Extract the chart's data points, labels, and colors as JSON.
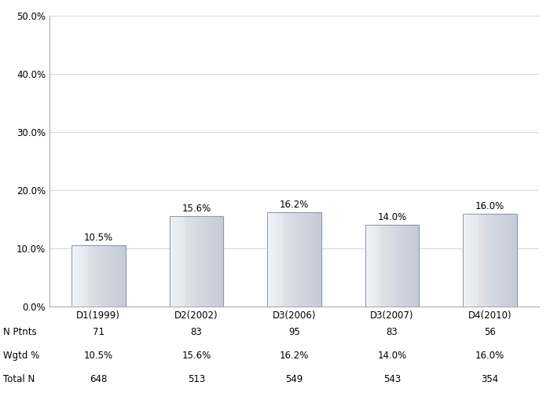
{
  "categories": [
    "D1(1999)",
    "D2(2002)",
    "D3(2006)",
    "D3(2007)",
    "D4(2010)"
  ],
  "values": [
    10.5,
    15.6,
    16.2,
    14.0,
    16.0
  ],
  "bar_labels": [
    "10.5%",
    "15.6%",
    "16.2%",
    "14.0%",
    "16.0%"
  ],
  "ylim": [
    0,
    50
  ],
  "yticks": [
    0,
    10,
    20,
    30,
    40,
    50
  ],
  "ytick_labels": [
    "0.0%",
    "10.0%",
    "20.0%",
    "30.0%",
    "40.0%",
    "50.0%"
  ],
  "n_ptnts": [
    71,
    83,
    95,
    83,
    56
  ],
  "wgtd_pct": [
    "10.5%",
    "15.6%",
    "16.2%",
    "14.0%",
    "16.0%"
  ],
  "total_n": [
    648,
    513,
    549,
    543,
    354
  ],
  "row_labels": [
    "N Ptnts",
    "Wgtd %",
    "Total N"
  ],
  "background_color": "#ffffff",
  "grid_color": "#d0d0d0",
  "text_color": "#000000",
  "bar_width": 0.55,
  "label_fontsize": 8.5,
  "tick_fontsize": 8.5,
  "table_fontsize": 8.5
}
